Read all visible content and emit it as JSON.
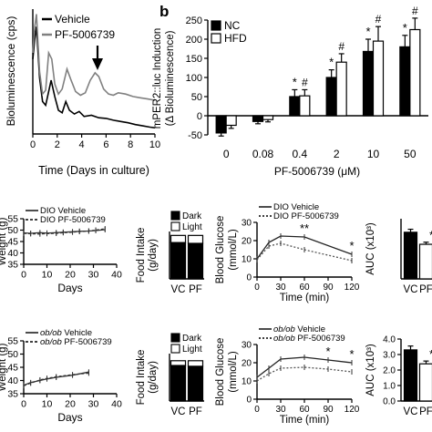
{
  "figure": {
    "panel_b_letter": "b"
  },
  "chart_data": [
    {
      "id": "circadian",
      "type": "line",
      "xlabel": "Time (Days in culture)",
      "ylabel": "Bioluminescence (cps)",
      "xlim": [
        0,
        10
      ],
      "ylim": [
        0,
        10
      ],
      "x_ticks": [
        "0",
        "2",
        "4",
        "6",
        "8",
        "10"
      ],
      "legend_position": "top-left",
      "series": [
        {
          "name": "Vehicle",
          "color": "#000000",
          "points": [
            [
              0,
              6.0
            ],
            [
              0.15,
              7.5
            ],
            [
              0.3,
              8.6
            ],
            [
              0.55,
              4.5
            ],
            [
              0.8,
              2.6
            ],
            [
              1.05,
              2.3
            ],
            [
              1.25,
              3.2
            ],
            [
              1.5,
              4.3
            ],
            [
              1.8,
              3.0
            ],
            [
              2.1,
              1.9
            ],
            [
              2.4,
              1.7
            ],
            [
              2.7,
              2.6
            ],
            [
              3.0,
              1.9
            ],
            [
              3.4,
              1.6
            ],
            [
              3.8,
              1.8
            ],
            [
              4.2,
              1.4
            ],
            [
              4.8,
              1.5
            ],
            [
              5.4,
              1.3
            ],
            [
              6.0,
              1.25
            ],
            [
              6.6,
              1.1
            ],
            [
              7.2,
              1.0
            ],
            [
              7.8,
              0.9
            ],
            [
              8.4,
              0.75
            ],
            [
              9.0,
              0.65
            ],
            [
              9.6,
              0.55
            ],
            [
              10.0,
              0.5
            ]
          ]
        },
        {
          "name": "PF-5006739",
          "color": "#808080",
          "points": [
            [
              0,
              6.5
            ],
            [
              0.15,
              8.5
            ],
            [
              0.3,
              9.6
            ],
            [
              0.55,
              5.0
            ],
            [
              0.8,
              3.2
            ],
            [
              1.05,
              3.5
            ],
            [
              1.3,
              6.5
            ],
            [
              1.55,
              6.0
            ],
            [
              1.8,
              4.0
            ],
            [
              2.1,
              3.2
            ],
            [
              2.4,
              3.6
            ],
            [
              2.8,
              5.2
            ],
            [
              3.1,
              4.4
            ],
            [
              3.5,
              3.4
            ],
            [
              3.9,
              3.1
            ],
            [
              4.3,
              3.3
            ],
            [
              4.7,
              4.3
            ],
            [
              5.1,
              4.9
            ],
            [
              5.4,
              4.6
            ],
            [
              5.8,
              3.6
            ],
            [
              6.2,
              3.2
            ],
            [
              6.6,
              3.1
            ],
            [
              7.0,
              3.3
            ],
            [
              7.6,
              3.2
            ],
            [
              8.2,
              3.0
            ],
            [
              8.8,
              2.9
            ],
            [
              9.4,
              2.8
            ],
            [
              10.0,
              2.7
            ]
          ]
        }
      ]
    },
    {
      "id": "mper2",
      "type": "bar",
      "ylabel_line1": "mPER2::luc Induction",
      "ylabel_line2": "(Δ Bioluminescence)",
      "xlabel": "PF-5006739 (μM)",
      "categories": [
        "0",
        "0.08",
        "0.4",
        "2",
        "10",
        "50"
      ],
      "ylim": [
        -50,
        250
      ],
      "y_ticks": [
        "-50",
        "0",
        "50",
        "100",
        "150",
        "200",
        "250"
      ],
      "legend_position": "top-left",
      "series": [
        {
          "name": "NC",
          "color": "#000000",
          "values": [
            -45,
            -15,
            50,
            100,
            168,
            180
          ],
          "errors": [
            8,
            6,
            18,
            20,
            32,
            30
          ]
        },
        {
          "name": "HFD",
          "color": "#ffffff",
          "values": [
            -25,
            -10,
            52,
            140,
            195,
            225
          ],
          "errors": [
            8,
            6,
            16,
            22,
            38,
            30
          ]
        }
      ],
      "significance": [
        {
          "category": "0.4",
          "nc": "*",
          "hfd": "#"
        },
        {
          "category": "2",
          "nc": "*",
          "hfd": "#"
        },
        {
          "category": "10",
          "nc": "*",
          "hfd": "#"
        },
        {
          "category": "50",
          "nc": "*",
          "hfd": "#"
        }
      ]
    },
    {
      "id": "dio_weight",
      "type": "line",
      "xlabel": "Days",
      "ylabel": "Weight (g)",
      "xlim": [
        0,
        40
      ],
      "ylim": [
        35,
        55
      ],
      "x_ticks": [
        "0",
        "10",
        "20",
        "30",
        "40"
      ],
      "y_ticks": [
        "35",
        "40",
        "45",
        "50",
        "55"
      ],
      "legend_position": "top",
      "series": [
        {
          "name": "DIO Vehicle",
          "style": "solid",
          "x": [
            0,
            3,
            7,
            10,
            14,
            17,
            21,
            24,
            28,
            31,
            35
          ],
          "y": [
            48.8,
            48.6,
            48.9,
            48.7,
            48.9,
            49.1,
            49.3,
            49.5,
            49.6,
            49.8,
            50.2
          ]
        },
        {
          "name": "DIO PF-5006739",
          "style": "dashed",
          "x": [
            0,
            3,
            7,
            10,
            14,
            17,
            21,
            24,
            28,
            31,
            35
          ],
          "y": [
            48.6,
            48.4,
            48.3,
            48.5,
            48.6,
            48.9,
            49.1,
            49.4,
            49.6,
            50.0,
            50.6
          ]
        }
      ]
    },
    {
      "id": "dio_food",
      "type": "bar",
      "stacked": true,
      "ylabel_line1": "Food Intake",
      "ylabel_line2": "(g/day)",
      "categories": [
        "VC",
        "PF"
      ],
      "ylim": [
        0,
        3
      ],
      "legend_position": "top",
      "series": [
        {
          "name": "Dark",
          "color": "#000000",
          "values": [
            2.3,
            2.25
          ]
        },
        {
          "name": "Light",
          "color": "#ffffff",
          "values": [
            0.45,
            0.5
          ]
        }
      ]
    },
    {
      "id": "dio_glucose",
      "type": "line",
      "xlabel": "Time (min)",
      "ylabel_line1": "Blood Glucose",
      "ylabel_line2": "(mmol/L)",
      "xlim": [
        0,
        120
      ],
      "ylim": [
        0,
        30
      ],
      "x_ticks": [
        "0",
        "30",
        "60",
        "90",
        "120"
      ],
      "y_ticks": [
        "0",
        "10",
        "20",
        "30"
      ],
      "legend_position": "top",
      "series": [
        {
          "name": "DIO Vehicle",
          "style": "solid",
          "x": [
            0,
            15,
            30,
            60,
            120
          ],
          "y": [
            10,
            19,
            22.5,
            22,
            12.5
          ]
        },
        {
          "name": "DIO PF-5006739",
          "style": "dashed",
          "x": [
            0,
            15,
            30,
            60,
            120
          ],
          "y": [
            9.5,
            17,
            18.5,
            15,
            9
          ]
        }
      ],
      "annotations": [
        {
          "text": "**",
          "x": 60
        },
        {
          "text": "*",
          "x": 120
        }
      ]
    },
    {
      "id": "dio_auc",
      "type": "bar",
      "ylabel": "AUC (x10³)",
      "categories": [
        "VC",
        "PF"
      ],
      "ylim": [
        0,
        2
      ],
      "series": [
        {
          "name": "",
          "colors": [
            "#000000",
            "#ffffff"
          ],
          "values": [
            1.55,
            1.15
          ],
          "errors": [
            0.1,
            0.07
          ]
        }
      ],
      "annotations": [
        {
          "text": "*",
          "category": "PF"
        }
      ]
    },
    {
      "id": "obob_weight",
      "type": "line",
      "xlabel": "Days",
      "ylabel": "Weight (g)",
      "xlim": [
        0,
        40
      ],
      "ylim": [
        35,
        55
      ],
      "x_ticks": [
        "0",
        "10",
        "20",
        "30",
        "40"
      ],
      "y_ticks": [
        "35",
        "40",
        "45",
        "50",
        "55"
      ],
      "legend_position": "top",
      "series": [
        {
          "name_italic": "ob/ob",
          "name_rest": " Vehicle",
          "style": "solid",
          "x": [
            0,
            3,
            7,
            10,
            14,
            21,
            28
          ],
          "y": [
            38.2,
            39.2,
            40.0,
            40.6,
            41.2,
            42.0,
            43.2
          ]
        },
        {
          "name_italic": "ob/ob",
          "name_rest": " PF-5006739",
          "style": "dashed",
          "x": [
            0,
            3,
            7,
            10,
            14,
            21,
            28
          ],
          "y": [
            38.0,
            39.0,
            40.2,
            40.8,
            41.4,
            42.2,
            42.8
          ]
        }
      ]
    },
    {
      "id": "obob_food",
      "type": "bar",
      "stacked": true,
      "ylabel_line1": "Food Intake",
      "ylabel_line2": "(g/day)",
      "categories": [
        "VC",
        "PF"
      ],
      "ylim": [
        0,
        6
      ],
      "legend_position": "top",
      "series": [
        {
          "name": "Dark",
          "color": "#000000",
          "values": [
            4.5,
            4.4
          ]
        },
        {
          "name": "Light",
          "color": "#ffffff",
          "values": [
            0.6,
            0.7
          ]
        }
      ]
    },
    {
      "id": "obob_glucose",
      "type": "line",
      "xlabel": "Time (min)",
      "ylabel_line1": "Blood Glucose",
      "ylabel_line2": "(mmol/L)",
      "xlim": [
        0,
        120
      ],
      "ylim": [
        0,
        30
      ],
      "x_ticks": [
        "0",
        "30",
        "60",
        "90",
        "120"
      ],
      "y_ticks": [
        "0",
        "10",
        "20",
        "30"
      ],
      "legend_position": "top",
      "series": [
        {
          "name_italic": "ob/ob",
          "name_rest": " Vehicle",
          "style": "solid",
          "x": [
            0,
            15,
            30,
            60,
            90,
            120
          ],
          "y": [
            12,
            17,
            22,
            23,
            21.5,
            20
          ]
        },
        {
          "name_italic": "ob/ob",
          "name_rest": " PF-5006739",
          "style": "dashed",
          "x": [
            0,
            15,
            30,
            60,
            90,
            120
          ],
          "y": [
            10,
            14,
            17,
            17.5,
            16.5,
            15
          ]
        }
      ],
      "annotations": [
        {
          "text": "*",
          "x": 90
        },
        {
          "text": "*",
          "x": 120
        }
      ]
    },
    {
      "id": "obob_auc",
      "type": "bar",
      "ylabel": "AUC (x10³)",
      "categories": [
        "VC",
        "PF"
      ],
      "ylim": [
        0,
        4
      ],
      "y_ticks": [
        "0.0",
        "1.0",
        "2.0",
        "3.0",
        "4.0"
      ],
      "series": [
        {
          "name": "",
          "colors": [
            "#000000",
            "#ffffff"
          ],
          "values": [
            3.3,
            2.4
          ],
          "errors": [
            0.25,
            0.18
          ]
        }
      ],
      "annotations": [
        {
          "text": "*",
          "category": "PF"
        }
      ]
    }
  ]
}
